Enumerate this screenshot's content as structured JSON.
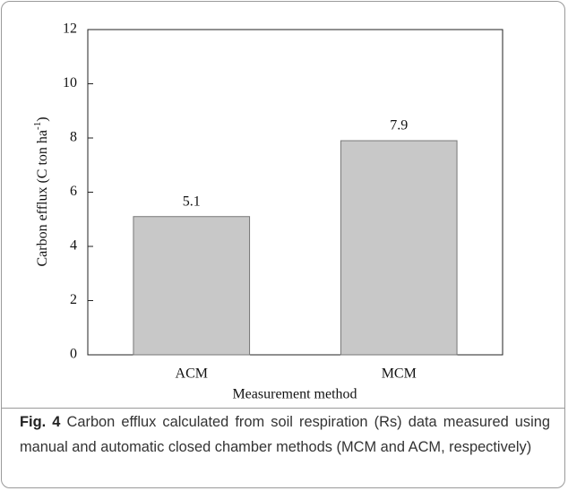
{
  "chart_data": {
    "type": "bar",
    "categories": [
      "ACM",
      "MCM"
    ],
    "values": [
      5.1,
      7.9
    ],
    "color": "#c8c8c8",
    "ylim": [
      0,
      12
    ],
    "yticks": [
      0,
      2,
      4,
      6,
      8,
      10,
      12
    ],
    "xlabel": "Measurement method",
    "ylabel_parts": [
      "Carbon efflux (C ton ha",
      "-1",
      ")"
    ]
  },
  "caption": {
    "label": "Fig. 4",
    "text": "Carbon efflux calculated from soil respiration (Rs) data measured using manual and automatic closed chamber methods (MCM and ACM, respectively)"
  }
}
